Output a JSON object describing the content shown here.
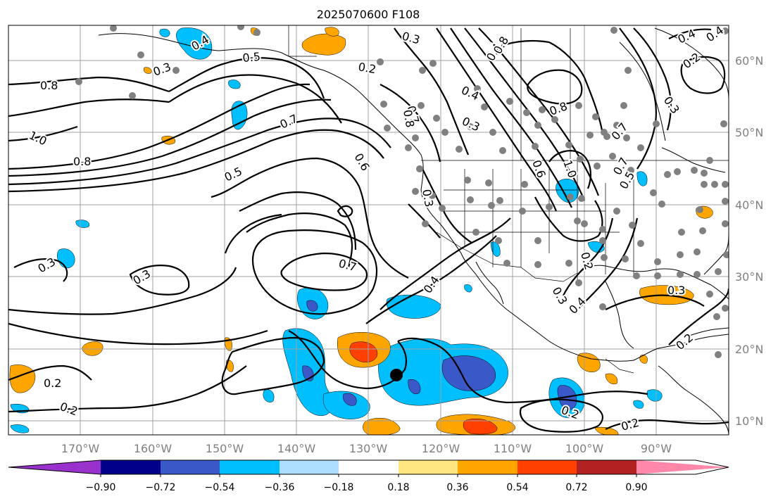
{
  "title": "2025070600 F108",
  "lon_labels": [
    "170°W",
    "160°W",
    "150°W",
    "140°W",
    "130°W",
    "120°W",
    "110°W",
    "100°W",
    "90°W"
  ],
  "lat_labels": [
    "60°N",
    "50°N",
    "40°N",
    "30°N",
    "20°N",
    "10°N"
  ],
  "colorbar": {
    "ticks": [
      "−0.90",
      "−0.72",
      "−0.54",
      "−0.36",
      "−0.18",
      "0.18",
      "0.36",
      "0.54",
      "0.72",
      "0.90"
    ],
    "colors": [
      "#9932cc",
      "#00008b",
      "#3a58c8",
      "#00bfff",
      "#acdfff",
      "#ffffff",
      "#ffe680",
      "#ffa500",
      "#ff4000",
      "#b22222",
      "#ff88aa"
    ]
  },
  "contour_labels": [
    "0.3",
    "0.4",
    "0.5",
    "0.8",
    "1.0",
    "0.8",
    "0.7",
    "0.5",
    "0.6",
    "0.7",
    "0.3",
    "0.3",
    "0.7",
    "0.4",
    "0.2",
    "0.2",
    "0.3",
    "0.4",
    "0.2",
    "0.2",
    "0.8",
    "0.4",
    "0.3",
    "0.8",
    "0.7",
    "0.6",
    "1.0",
    "0.8",
    "0.7",
    "0.5",
    "0.4",
    "0.2",
    "0.3",
    "0.4",
    "0.2",
    "0.3",
    "0.2",
    "0.3",
    "0.4",
    "0.2",
    "0.3"
  ],
  "colors": {
    "point_gray": "#808080",
    "marker": "#000000"
  }
}
